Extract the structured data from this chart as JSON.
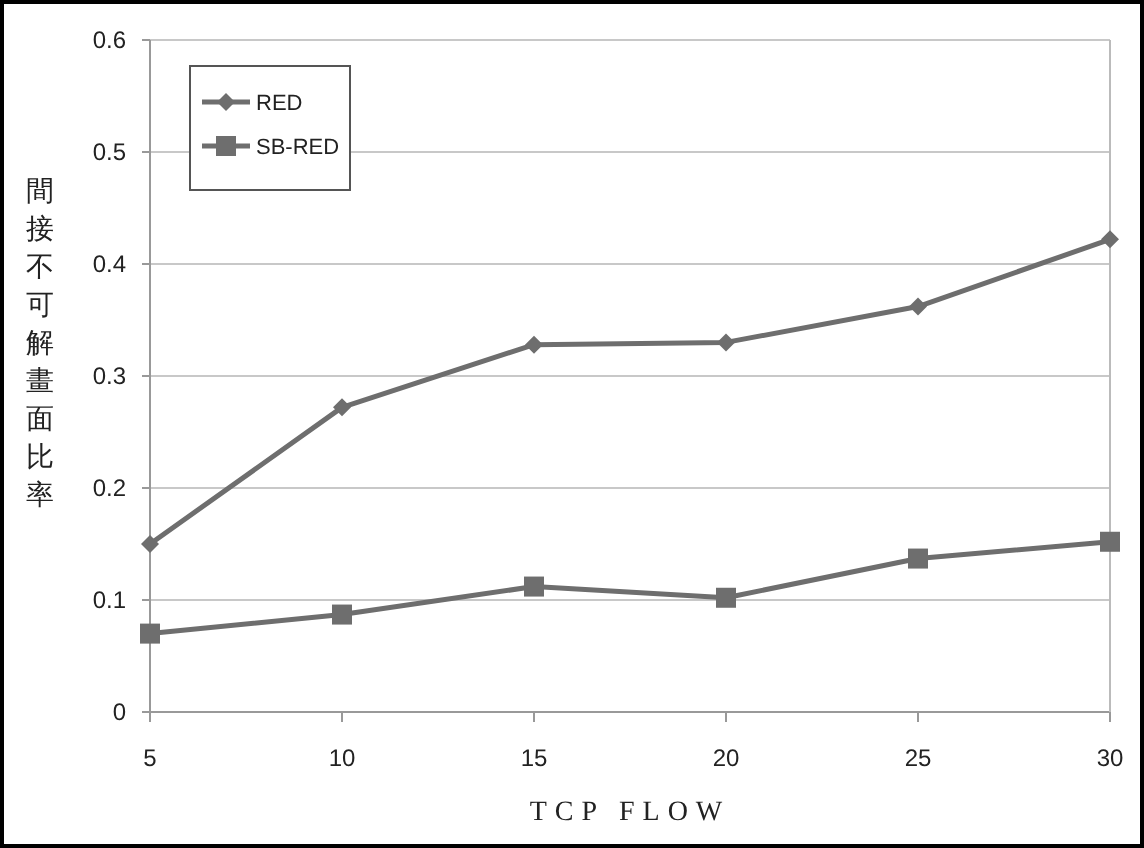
{
  "chart_data": {
    "type": "line",
    "xlabel": "TCP FLOW",
    "ylabel": "間接不可解畫面比率",
    "x": [
      5,
      10,
      15,
      20,
      25,
      30
    ],
    "series": [
      {
        "name": "RED",
        "color": "#6e6e6e",
        "marker": "diamond",
        "values": [
          0.15,
          0.272,
          0.328,
          0.33,
          0.362,
          0.422
        ]
      },
      {
        "name": "SB-RED",
        "color": "#6e6e6e",
        "marker": "square",
        "values": [
          0.07,
          0.087,
          0.112,
          0.102,
          0.137,
          0.152
        ]
      }
    ],
    "xlim": [
      5,
      30
    ],
    "xticks": [
      5,
      10,
      15,
      20,
      25,
      30
    ],
    "ylim": [
      0,
      0.6
    ],
    "yticks": [
      0,
      0.1,
      0.2,
      0.3,
      0.4,
      0.5,
      0.6
    ],
    "grid": "y",
    "legend": "top left",
    "line_style": "solid"
  }
}
